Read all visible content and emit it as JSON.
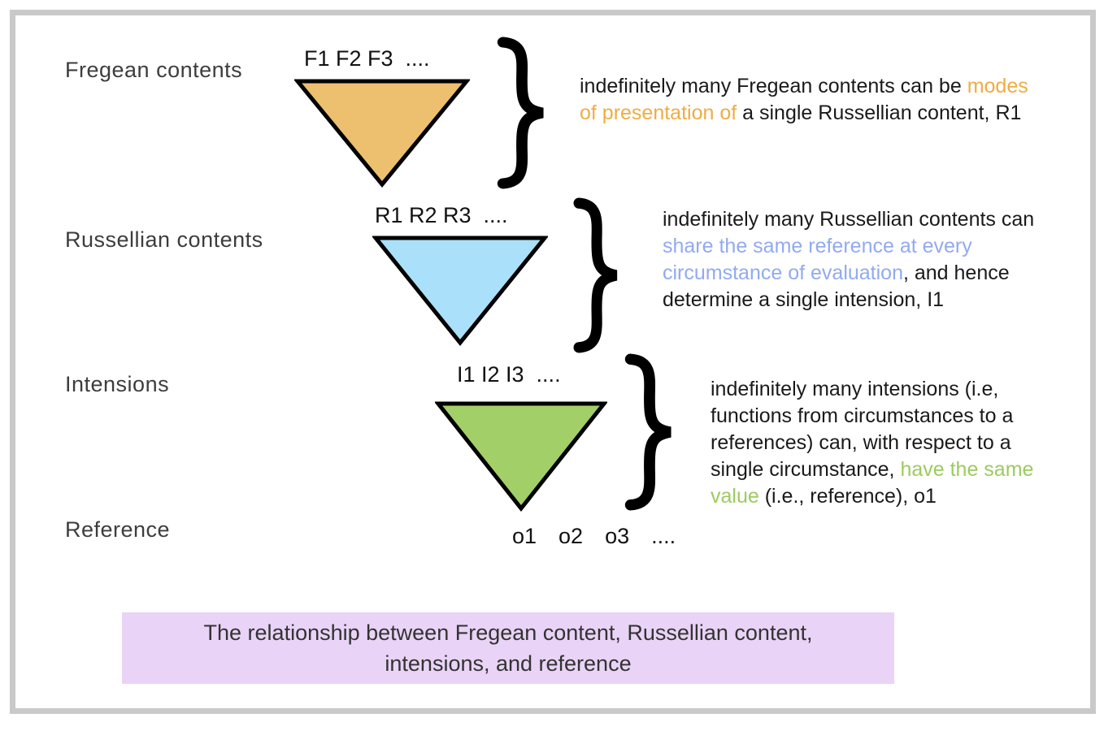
{
  "figure": {
    "row_labels": [
      {
        "label": "Fregean contents"
      },
      {
        "label": "Russellian contents"
      },
      {
        "label": "Intensions"
      },
      {
        "label": "Reference"
      }
    ],
    "triangles": [
      {
        "items_label": "F1 F2 F3  ....",
        "fill": "#ecc06e"
      },
      {
        "items_label": "R1 R2 R3  ....",
        "fill": "#abe0fa"
      },
      {
        "items_label": "I1 I2 I3  ....",
        "fill": "#a3cf68"
      }
    ],
    "reference_row_label": "o1  o2  o3  ....",
    "annotations": [
      {
        "accent_color": "#f0ac44",
        "segments": [
          {
            "text": "indefinitely many Fregean contents can be ",
            "accent": false
          },
          {
            "text": "modes",
            "accent": true
          },
          {
            "break": true
          },
          {
            "text": "of presentation of",
            "accent": true
          },
          {
            "text": " a single Russellian content, R1",
            "accent": false
          }
        ]
      },
      {
        "accent_color": "#92aaf0",
        "segments": [
          {
            "text": "indefinitely many Russellian contents can",
            "accent": false
          },
          {
            "break": true
          },
          {
            "text": "share the same reference at every",
            "accent": true
          },
          {
            "break": true
          },
          {
            "text": "circumstance of evaluation",
            "accent": true
          },
          {
            "text": ", and hence",
            "accent": false
          },
          {
            "break": true
          },
          {
            "text": "determine a single intension, I1",
            "accent": false
          }
        ]
      },
      {
        "accent_color": "#9ccb5e",
        "segments": [
          {
            "text": "indefinitely many intensions (i.e,",
            "accent": false
          },
          {
            "break": true
          },
          {
            "text": "functions from circumstances to a",
            "accent": false
          },
          {
            "break": true
          },
          {
            "text": "references) can, with respect to a",
            "accent": false
          },
          {
            "break": true
          },
          {
            "text": "single circumstance, ",
            "accent": false
          },
          {
            "text": "have the same",
            "accent": true
          },
          {
            "break": true
          },
          {
            "text": "value",
            "accent": true
          },
          {
            "text": " (i.e., reference), o1",
            "accent": false
          }
        ]
      }
    ],
    "caption": {
      "line1": "The relationship between Fregean content, Russellian content,",
      "line2": "intensions, and reference",
      "bg_color": "#e9d3f6"
    },
    "colors": {
      "frame": "#c9c9c9",
      "triangle_stroke": "#000000",
      "brace": "#000000"
    }
  }
}
